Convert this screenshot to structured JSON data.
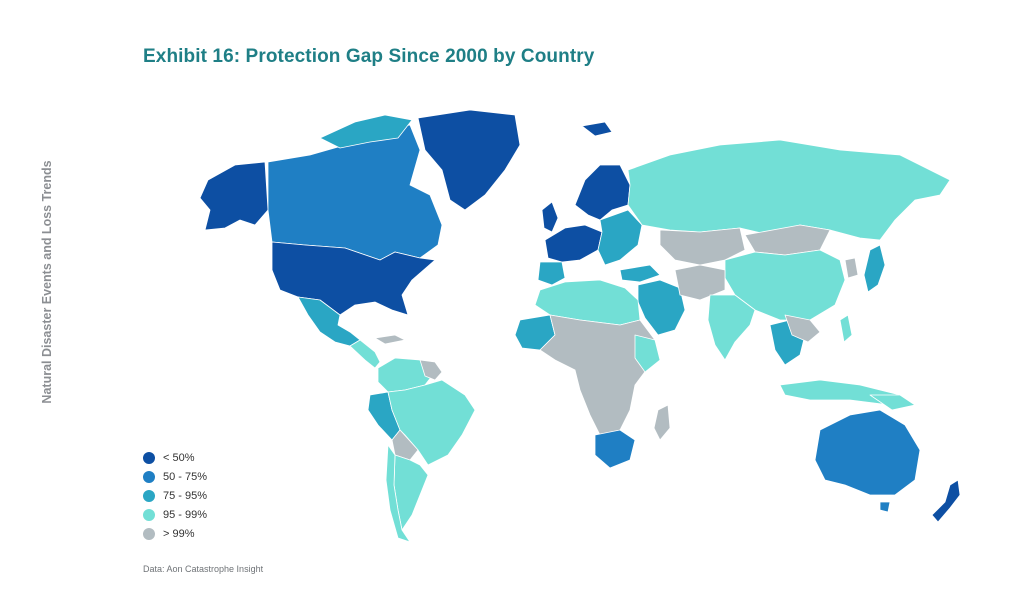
{
  "header": {
    "title": "Exhibit 16: Protection Gap Since 2000 by Country"
  },
  "side_label": "Natural Disaster Events and Loss Trends",
  "legend": {
    "items": [
      {
        "label": "< 50%",
        "color": "#0d4fa3"
      },
      {
        "label": "50 - 75%",
        "color": "#1f7fc4"
      },
      {
        "label": "75 - 95%",
        "color": "#2aa6c4"
      },
      {
        "label": "95 - 99%",
        "color": "#72dfd6"
      },
      {
        "label": "> 99%",
        "color": "#b2bcc1"
      }
    ]
  },
  "source": "Data: Aon Catastrophe Insight",
  "map": {
    "regions": [
      {
        "name": "alaska",
        "class": "< 50%"
      },
      {
        "name": "canada",
        "class": "50 - 75%"
      },
      {
        "name": "greenland",
        "class": "< 50%"
      },
      {
        "name": "usa",
        "class": "< 50%"
      },
      {
        "name": "mexico",
        "class": "75 - 95%"
      },
      {
        "name": "central-america",
        "class": "95 - 99%"
      },
      {
        "name": "colombia-venezuela",
        "class": "95 - 99%"
      },
      {
        "name": "peru",
        "class": "75 - 95%"
      },
      {
        "name": "brazil",
        "class": "95 - 99%"
      },
      {
        "name": "bolivia",
        "class": "> 99%"
      },
      {
        "name": "argentina",
        "class": "95 - 99%"
      },
      {
        "name": "chile",
        "class": "95 - 99%"
      },
      {
        "name": "western-europe",
        "class": "< 50%"
      },
      {
        "name": "scandinavia",
        "class": "< 50%"
      },
      {
        "name": "iberia",
        "class": "75 - 95%"
      },
      {
        "name": "eastern-europe",
        "class": "75 - 95%"
      },
      {
        "name": "russia",
        "class": "95 - 99%"
      },
      {
        "name": "north-africa",
        "class": "95 - 99%"
      },
      {
        "name": "sub-saharan-africa",
        "class": "> 99%"
      },
      {
        "name": "south-africa",
        "class": "50 - 75%"
      },
      {
        "name": "middle-east",
        "class": "75 - 95%"
      },
      {
        "name": "central-asia",
        "class": "> 99%"
      },
      {
        "name": "china",
        "class": "95 - 99%"
      },
      {
        "name": "mongolia",
        "class": "> 99%"
      },
      {
        "name": "india",
        "class": "95 - 99%"
      },
      {
        "name": "southeast-asia",
        "class": "75 - 95%"
      },
      {
        "name": "japan",
        "class": "50 - 75%"
      },
      {
        "name": "indonesia",
        "class": "95 - 99%"
      },
      {
        "name": "australia",
        "class": "50 - 75%"
      },
      {
        "name": "new-zealand",
        "class": "< 50%"
      },
      {
        "name": "madagascar",
        "class": "> 99%"
      }
    ]
  }
}
